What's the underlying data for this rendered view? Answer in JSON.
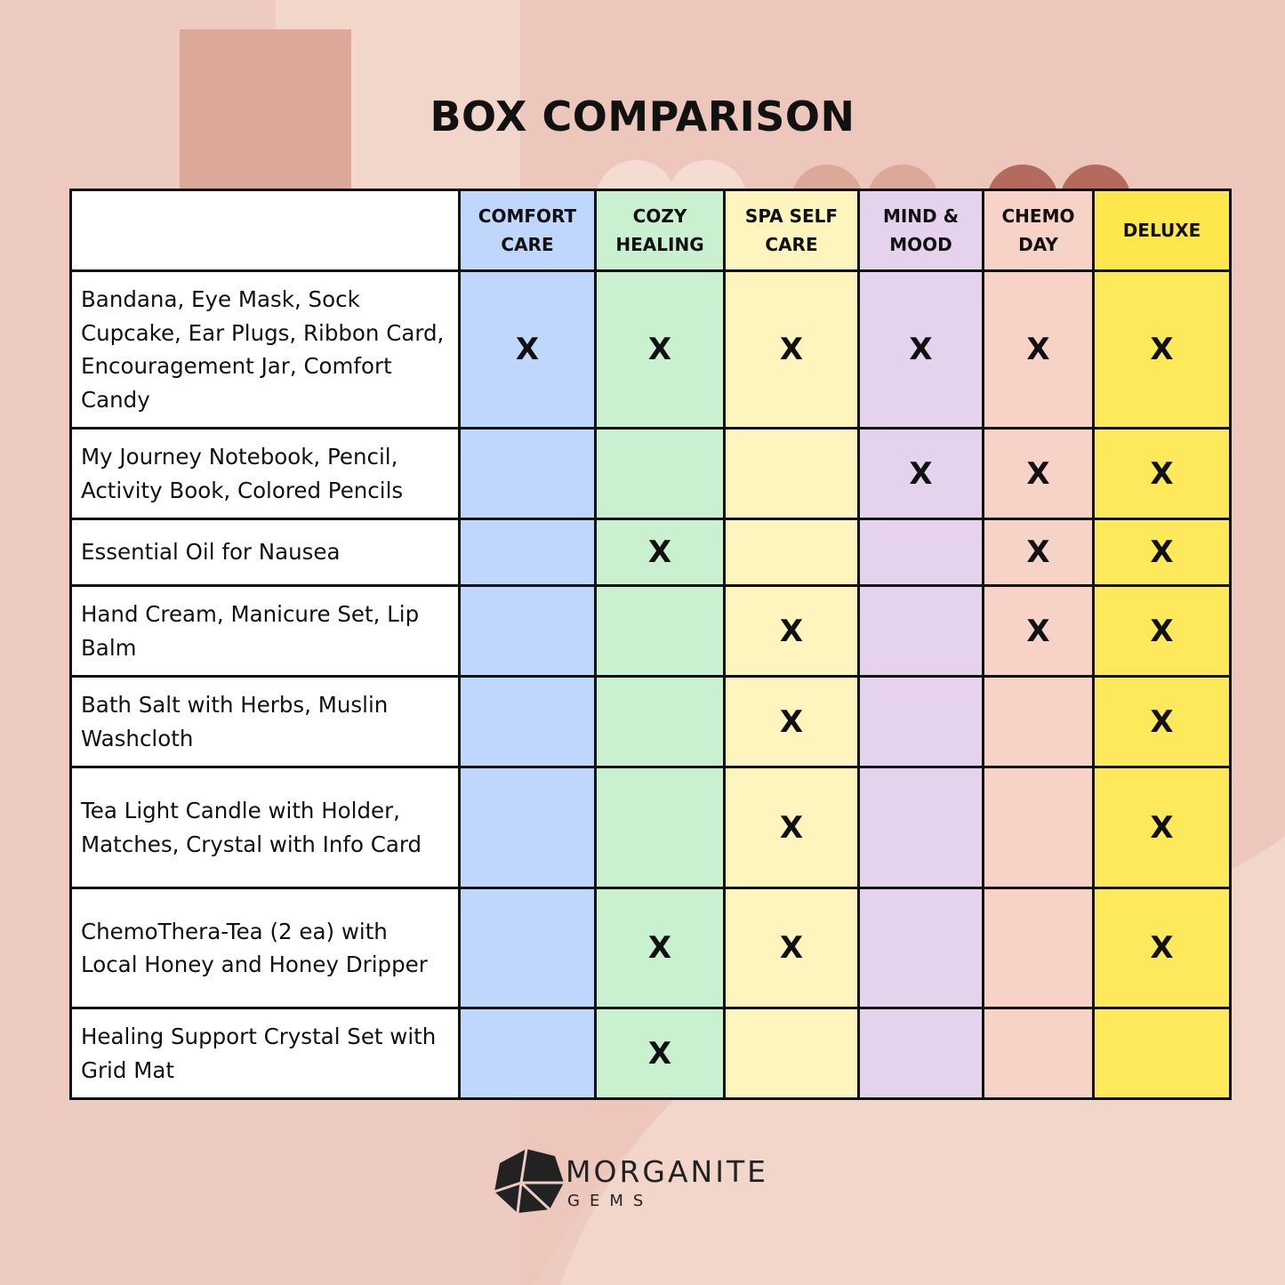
{
  "title": "BOX COMPARISON",
  "table": {
    "columns": [
      "COMFORT CARE",
      "COZY HEALING",
      "SPA SELF CARE",
      "MIND & MOOD",
      "CHEMO DAY",
      "DELUXE"
    ],
    "rows": [
      {
        "item": "Bandana, Eye Mask, Sock Cupcake, Ear Plugs, Ribbon Card, Encouragement Jar, Comfort Candy",
        "marks": [
          "X",
          "X",
          "X",
          "X",
          "X",
          "X"
        ]
      },
      {
        "item": "My Journey Notebook, Pencil, Activity Book, Colored Pencils",
        "marks": [
          null,
          null,
          null,
          "X",
          "X",
          "X"
        ]
      },
      {
        "item": "Essential Oil for Nausea",
        "marks": [
          null,
          "X",
          null,
          null,
          "X",
          "X"
        ]
      },
      {
        "item": "Hand Cream, Manicure Set, Lip Balm",
        "marks": [
          null,
          null,
          "X",
          null,
          "X",
          "X"
        ]
      },
      {
        "item": "Bath Salt with Herbs, Muslin Washcloth",
        "marks": [
          null,
          null,
          "X",
          null,
          null,
          "X"
        ]
      },
      {
        "item": "Tea Light Candle with Holder, Matches, Crystal with Info Card",
        "marks": [
          null,
          null,
          "X",
          null,
          null,
          "X"
        ]
      },
      {
        "item": "ChemoThera-Tea (2 ea) with Local Honey and Honey Dripper",
        "marks": [
          null,
          "X",
          "X",
          null,
          null,
          "X"
        ]
      },
      {
        "item": "Healing Support Crystal Set with Grid Mat",
        "marks": [
          null,
          "X",
          null,
          null,
          null,
          null
        ]
      }
    ]
  },
  "logo": {
    "name": "MORGANITE",
    "sub": "GEMS"
  }
}
